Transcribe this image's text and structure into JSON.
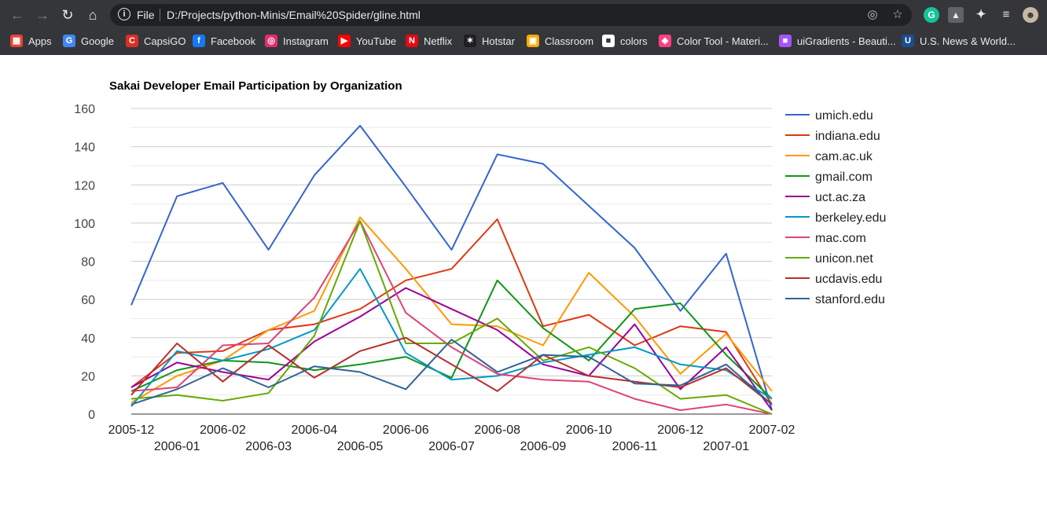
{
  "browser": {
    "omnibox": {
      "scheme_label": "File",
      "url": "D:/Projects/python-Minis/Email%20Spider/gline.html"
    },
    "nav_icons": [
      "back-arrow-icon",
      "forward-arrow-icon",
      "reload-icon",
      "home-icon"
    ],
    "bookmarks": [
      {
        "label": "Apps",
        "icon": "apps-grid-icon",
        "color": "#ea4335"
      },
      {
        "label": "Google",
        "icon": "google-icon",
        "color": "#4285f4"
      },
      {
        "label": "CapsiGO",
        "icon": "capsigo-icon",
        "color": "#d93025"
      },
      {
        "label": "Facebook",
        "icon": "facebook-icon",
        "color": "#1877f2"
      },
      {
        "label": "Instagram",
        "icon": "instagram-icon",
        "color": "#e1306c"
      },
      {
        "label": "YouTube",
        "icon": "youtube-icon",
        "color": "#ff0000"
      },
      {
        "label": "Netflix",
        "icon": "netflix-icon",
        "color": "#e50914"
      },
      {
        "label": "Hotstar",
        "icon": "hotstar-icon",
        "color": "#1f1f1f"
      },
      {
        "label": "Classroom",
        "icon": "classroom-icon",
        "color": "#f9ab00"
      },
      {
        "label": "colors",
        "icon": "colors-icon",
        "color": "#ffffff"
      },
      {
        "label": "Color Tool - Materi...",
        "icon": "color-tool-icon",
        "color": "#ff4081"
      },
      {
        "label": "uiGradients - Beauti...",
        "icon": "uigradients-icon",
        "color": "#a855f7"
      },
      {
        "label": "U.S. News & World...",
        "icon": "usnews-icon",
        "color": "#1a4d8f"
      }
    ]
  },
  "chart_data": {
    "type": "line",
    "title": "Sakai Developer Email Participation by Organization",
    "xlabel": "",
    "ylabel": "",
    "ylim": [
      0,
      160
    ],
    "yticks": [
      0,
      20,
      40,
      60,
      80,
      100,
      120,
      140,
      160
    ],
    "grid": true,
    "legend_position": "right",
    "categories": [
      "2005-12",
      "2006-01",
      "2006-02",
      "2006-03",
      "2006-04",
      "2006-05",
      "2006-06",
      "2006-07",
      "2006-08",
      "2006-09",
      "2006-10",
      "2006-11",
      "2006-12",
      "2007-01",
      "2007-02"
    ],
    "series": [
      {
        "name": "umich.edu",
        "color": "#3366cc",
        "values": [
          57,
          114,
          121,
          86,
          125,
          151,
          119,
          86,
          136,
          131,
          109,
          87,
          54,
          84,
          2
        ]
      },
      {
        "name": "indiana.edu",
        "color": "#dc3912",
        "values": [
          14,
          32,
          33,
          44,
          47,
          55,
          70,
          76,
          102,
          46,
          52,
          36,
          46,
          43,
          5
        ]
      },
      {
        "name": "cam.ac.uk",
        "color": "#ff9900",
        "values": [
          6,
          20,
          28,
          44,
          54,
          103,
          76,
          47,
          46,
          36,
          74,
          51,
          21,
          42,
          12
        ]
      },
      {
        "name": "gmail.com",
        "color": "#109618",
        "values": [
          12,
          23,
          28,
          27,
          23,
          26,
          30,
          19,
          70,
          45,
          28,
          55,
          58,
          31,
          8
        ]
      },
      {
        "name": "uct.ac.za",
        "color": "#990099",
        "values": [
          14,
          27,
          22,
          18,
          38,
          51,
          66,
          55,
          44,
          26,
          20,
          47,
          13,
          35,
          2
        ]
      },
      {
        "name": "berkeley.edu",
        "color": "#0099c6",
        "values": [
          4,
          33,
          28,
          34,
          44,
          76,
          32,
          18,
          20,
          27,
          31,
          35,
          26,
          23,
          8
        ]
      },
      {
        "name": "mac.com",
        "color": "#dd4477",
        "values": [
          12,
          14,
          36,
          37,
          61,
          101,
          53,
          35,
          21,
          18,
          17,
          8,
          2,
          5,
          0
        ]
      },
      {
        "name": "unicon.net",
        "color": "#66aa00",
        "values": [
          8,
          10,
          7,
          11,
          41,
          101,
          37,
          37,
          50,
          28,
          35,
          24,
          8,
          10,
          0
        ]
      },
      {
        "name": "ucdavis.edu",
        "color": "#b82e2e",
        "values": [
          10,
          37,
          17,
          36,
          19,
          33,
          40,
          26,
          12,
          31,
          20,
          17,
          14,
          24,
          5
        ]
      },
      {
        "name": "stanford.edu",
        "color": "#316395",
        "values": [
          5,
          13,
          24,
          14,
          25,
          22,
          13,
          39,
          22,
          31,
          30,
          16,
          15,
          26,
          5
        ]
      }
    ]
  }
}
